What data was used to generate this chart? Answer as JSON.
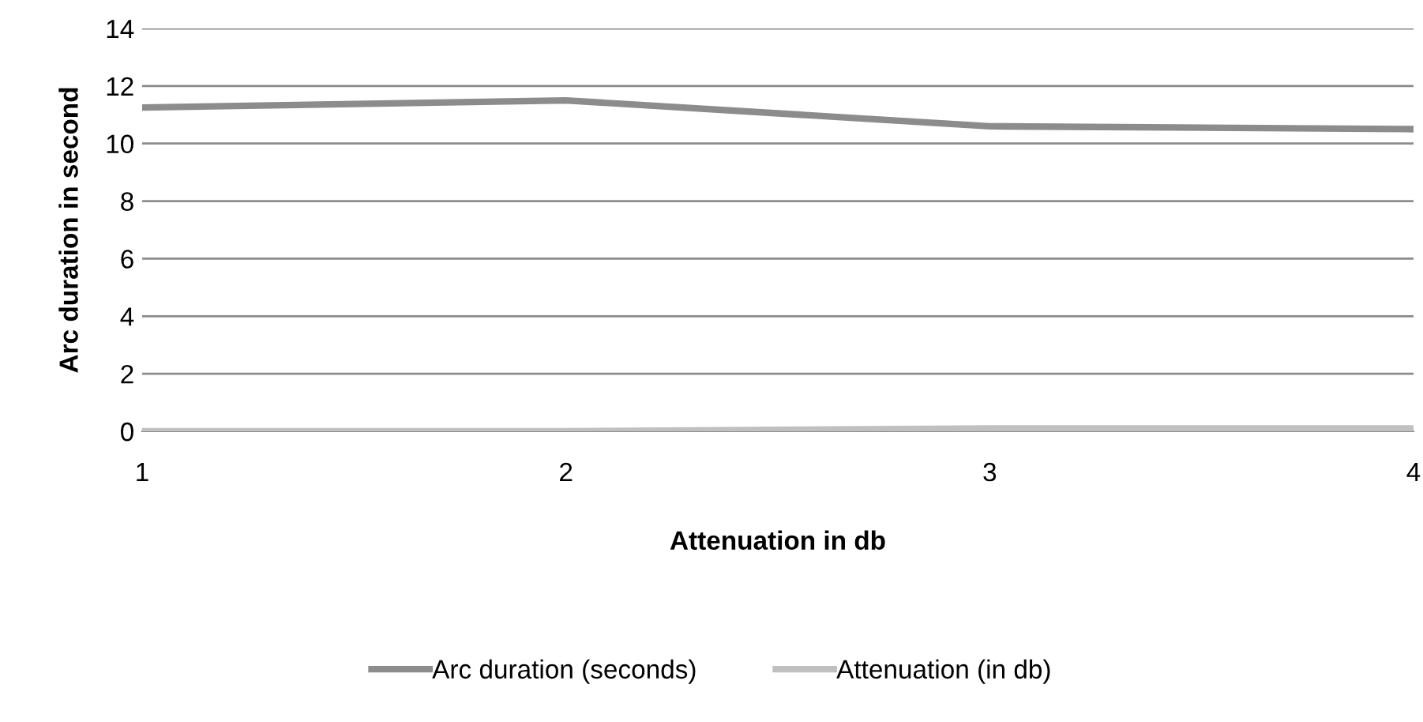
{
  "chart_data": {
    "type": "line",
    "xlabel": "Attenuation in db",
    "ylabel": "Arc duration in second",
    "categories": [
      "1",
      "2",
      "3",
      "4"
    ],
    "series": [
      {
        "name": "Arc duration (seconds)",
        "color": "#8c8c8c",
        "values": [
          11.25,
          11.5,
          10.6,
          10.5
        ]
      },
      {
        "name": "Attenuation (in db)",
        "color": "#c0c0c0",
        "values": [
          0,
          0,
          0.1,
          0.1
        ]
      }
    ],
    "ylim": [
      0,
      14
    ],
    "yticks": [
      0,
      2,
      4,
      6,
      8,
      10,
      12,
      14
    ],
    "grid": "y",
    "legend": "bottom",
    "marker": "none"
  }
}
